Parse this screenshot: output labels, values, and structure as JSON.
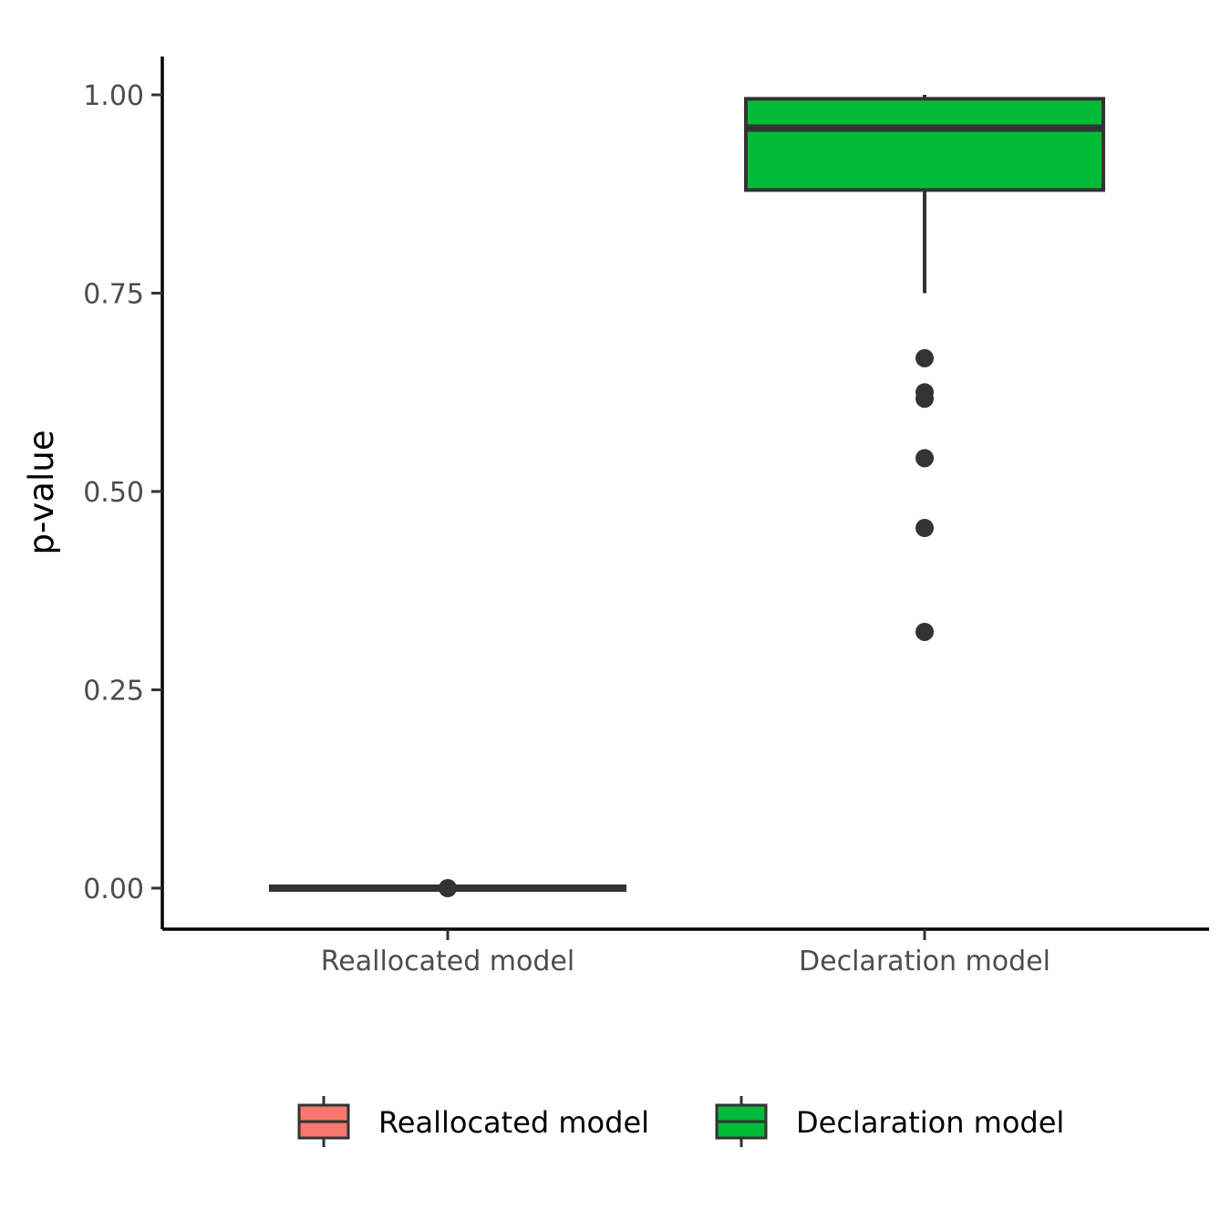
{
  "chart_data": {
    "type": "boxplot",
    "title": "",
    "xlabel": "",
    "ylabel": "p-value",
    "ylim": [
      -0.05,
      1.05
    ],
    "yticks": [
      0.0,
      0.25,
      0.5,
      0.75,
      1.0
    ],
    "ytick_labels": [
      "0.00",
      "0.25",
      "0.50",
      "0.75",
      "1.00"
    ],
    "grid": false,
    "legend_position": "bottom",
    "categories": [
      "Reallocated model",
      "Declaration model"
    ],
    "series": [
      {
        "name": "Reallocated model",
        "color": "#F8766D",
        "min": 0.0,
        "q1": 0.0,
        "median": 0.0,
        "q3": 0.0,
        "max": 0.0,
        "outliers": [
          0.0
        ]
      },
      {
        "name": "Declaration model",
        "color": "#00BA38",
        "min": 0.75,
        "q1": 0.88,
        "median": 0.958,
        "q3": 0.995,
        "max": 1.0,
        "outliers": [
          0.668,
          0.625,
          0.617,
          0.542,
          0.454,
          0.323
        ]
      }
    ]
  }
}
